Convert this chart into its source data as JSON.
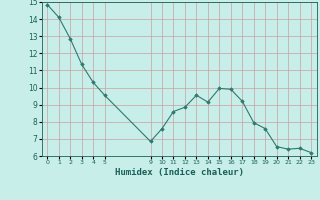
{
  "x": [
    0,
    1,
    2,
    3,
    4,
    5,
    9,
    10,
    11,
    12,
    13,
    14,
    15,
    16,
    17,
    18,
    19,
    20,
    21,
    22,
    23
  ],
  "y": [
    14.85,
    14.1,
    12.85,
    11.35,
    10.3,
    9.55,
    6.85,
    7.6,
    8.6,
    8.85,
    9.55,
    9.15,
    9.95,
    9.9,
    9.2,
    7.95,
    7.6,
    6.55,
    6.4,
    6.45,
    6.2
  ],
  "line_color": "#2d7a6e",
  "marker_color": "#2d7a6e",
  "bg_color": "#c8eeea",
  "grid_color": "#c8a0a0",
  "xlabel": "Humidex (Indice chaleur)",
  "xlabel_color": "#1a5f57",
  "tick_label_color": "#1a5f57",
  "ylim": [
    6,
    15
  ],
  "xlim": [
    -0.5,
    23.5
  ],
  "yticks": [
    6,
    7,
    8,
    9,
    10,
    11,
    12,
    13,
    14,
    15
  ],
  "xticks": [
    0,
    1,
    2,
    3,
    4,
    5,
    9,
    10,
    11,
    12,
    13,
    14,
    15,
    16,
    17,
    18,
    19,
    20,
    21,
    22,
    23
  ],
  "xtick_labels": [
    "0",
    "1",
    "2",
    "3",
    "4",
    "5",
    "9",
    "10",
    "11",
    "12",
    "13",
    "14",
    "15",
    "16",
    "17",
    "18",
    "19",
    "20",
    "21",
    "22",
    "23"
  ]
}
